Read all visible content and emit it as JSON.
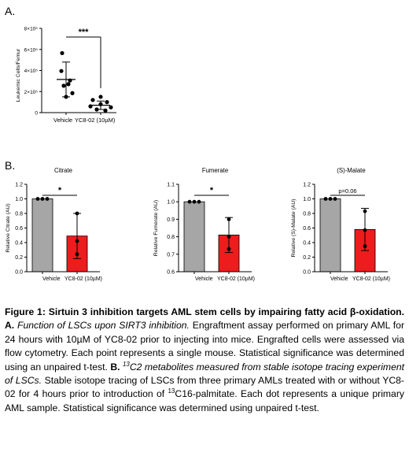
{
  "panel_a_label": "A.",
  "panel_b_label": "B.",
  "caption": {
    "fig": "Figure 1: Sirtuin 3 inhibition targets AML stem cells by impairing fatty acid β-oxidation.",
    "a": "A.",
    "a_title": "Function of LSCs upon SIRT3 inhibition.",
    "a_text": "Engraftment assay performed on primary AML for 24 hours with 10µM of YC8-02 prior to injecting into mice. Engrafted cells were assessed via flow cytometry. Each point represents a single mouse. Statistical significance was determined using an unpaired t-test.",
    "b": "B.",
    "b_title_sup": "13",
    "b_title": "C2 metabolites measured from stable isotope tracing experiment of LSCs.",
    "b_text_1": "Stable isotope tracing of LSCs from three primary AMLs treated with or without YC8-02 for 4 hours prior to introduction of",
    "b_text_sup": "13",
    "b_text_2": "C16-palmitate. Each dot represents a unique primary AML sample. Statistical significance was determined using unpaired t-test."
  },
  "chart_data": [
    {
      "type": "scatter",
      "title": "",
      "ylabel": "Leukemic Cells/Femur",
      "xlabel": "",
      "ylim": [
        0,
        800000
      ],
      "yticks": [
        0,
        200000,
        400000,
        600000,
        800000
      ],
      "ytick_labels": [
        "0",
        "2×10⁵",
        "4×10⁵",
        "6×10⁵",
        "8×10⁵"
      ],
      "categories": [
        "Vehicle",
        "YC8-02 (10µM)"
      ],
      "series": [
        {
          "category": "Vehicle",
          "points": [
            565000,
            395000,
            305000,
            270000,
            255000,
            185000,
            150000
          ],
          "mean": 315000,
          "sd": 165000
        },
        {
          "category": "YC8-02 (10µM)",
          "points": [
            150000,
            120000,
            100000,
            80000,
            60000,
            50000,
            30000,
            20000
          ],
          "mean": 70000,
          "sd": 40000
        }
      ],
      "significance": "***"
    },
    {
      "type": "bar",
      "title": "Citrate",
      "ylabel": "Relative Citrate (AU)",
      "categories": [
        "Vehicle",
        "YC8-02 (10µM)"
      ],
      "ylim": [
        0,
        1.2
      ],
      "yticks": [
        0,
        0.2,
        0.4,
        0.6,
        0.8,
        1.0,
        1.2
      ],
      "ytick_labels": [
        "0.0",
        "0.2",
        "0.4",
        "0.6",
        "0.8",
        "1.0",
        "1.2"
      ],
      "values": [
        1.0,
        0.49
      ],
      "err": [
        0,
        0.31
      ],
      "points": [
        [
          1.0,
          1.0,
          1.0
        ],
        [
          0.8,
          0.42,
          0.24
        ]
      ],
      "colors": [
        "#a6a6a6",
        "#ee1c1c"
      ],
      "significance": "*"
    },
    {
      "type": "bar",
      "title": "Fumerate",
      "ylabel": "Relative Fumerate (AU)",
      "categories": [
        "Vehicle",
        "YC8-02 (10µM)"
      ],
      "ylim": [
        0.6,
        1.1
      ],
      "yticks": [
        0.6,
        0.7,
        0.8,
        0.9,
        1.0,
        1.1
      ],
      "ytick_labels": [
        "0.6",
        "0.7",
        "0.8",
        "0.9",
        "1.0",
        "1.1"
      ],
      "values": [
        1.0,
        0.81
      ],
      "err": [
        0,
        0.1
      ],
      "points": [
        [
          1.0,
          1.0,
          1.0
        ],
        [
          0.9,
          0.8,
          0.73
        ]
      ],
      "colors": [
        "#a6a6a6",
        "#ee1c1c"
      ],
      "significance": "*"
    },
    {
      "type": "bar",
      "title": "(S)-Malate",
      "ylabel": "Relative (S)-Malate (AU)",
      "categories": [
        "Vehicle",
        "YC8-02 (10µM)"
      ],
      "ylim": [
        0,
        1.2
      ],
      "yticks": [
        0,
        0.2,
        0.4,
        0.6,
        0.8,
        1.0,
        1.2
      ],
      "ytick_labels": [
        "0.0",
        "0.2",
        "0.4",
        "0.6",
        "0.8",
        "1.0",
        "1.2"
      ],
      "values": [
        1.0,
        0.58
      ],
      "err": [
        0,
        0.29
      ],
      "points": [
        [
          1.0,
          1.0,
          1.0
        ],
        [
          0.83,
          0.57,
          0.35
        ]
      ],
      "colors": [
        "#a6a6a6",
        "#ee1c1c"
      ],
      "significance": "p=0.06"
    }
  ]
}
